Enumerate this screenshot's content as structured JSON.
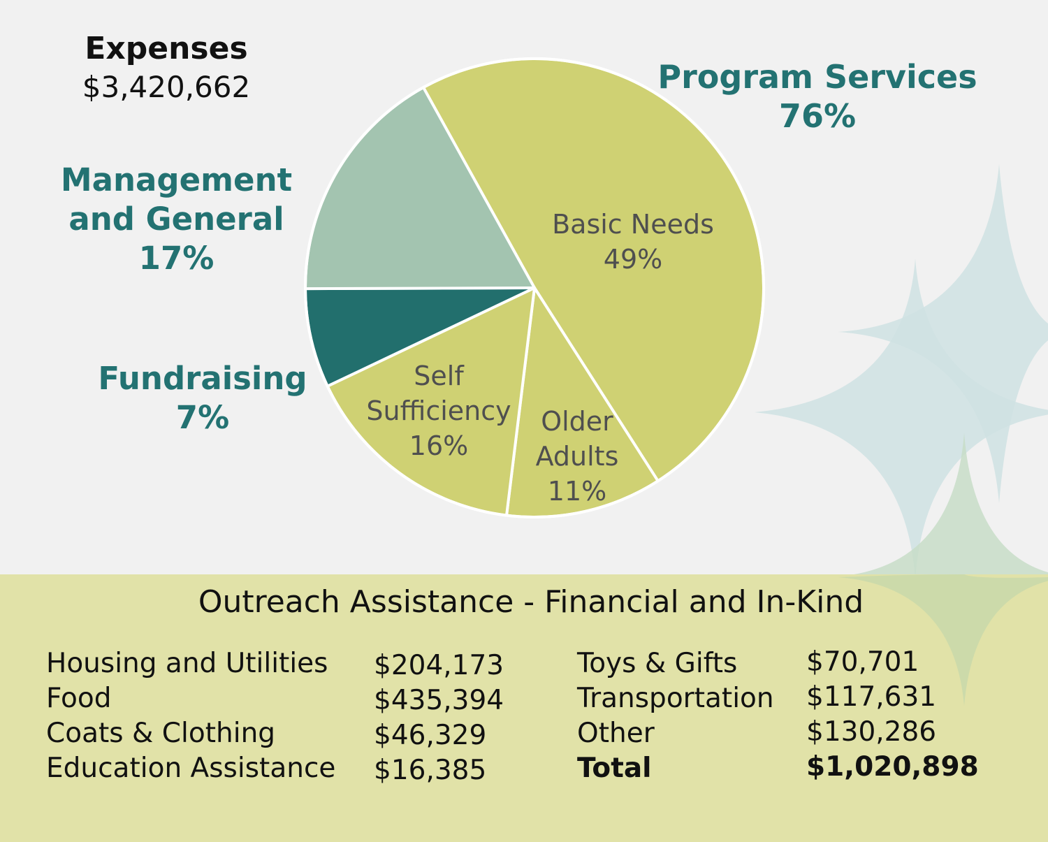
{
  "header": {
    "title": "Expenses",
    "total": "$3,420,662"
  },
  "categories": {
    "program_services": {
      "name": "Program Services",
      "percent": "76%"
    },
    "management": {
      "line1": "Management",
      "line2": "and General",
      "percent": "17%"
    },
    "fundraising": {
      "name": "Fundraising",
      "percent": "7%"
    }
  },
  "slice_labels": {
    "basic_needs": {
      "line1": "Basic Needs",
      "line2": "49%"
    },
    "self_sufficiency": {
      "line1": "Self",
      "line2": "Sufficiency",
      "line3": "16%"
    },
    "older_adults": {
      "line1": "Older",
      "line2": "Adults",
      "line3": "11%"
    }
  },
  "colors": {
    "program": "#cfd173",
    "management": "#a3c4b0",
    "fundraising": "#226f6d",
    "teal_text": "#237272",
    "panel": "#e1e2a8",
    "stars": "#c9dfe0"
  },
  "chart_data": {
    "type": "pie",
    "title": "Expenses",
    "total": "$3,420,662",
    "slices": [
      {
        "label": "Basic Needs",
        "value": 49,
        "group": "Program Services",
        "color": "#cfd173"
      },
      {
        "label": "Older Adults",
        "value": 11,
        "group": "Program Services",
        "color": "#cfd173"
      },
      {
        "label": "Self Sufficiency",
        "value": 16,
        "group": "Program Services",
        "color": "#cfd173"
      },
      {
        "label": "Fundraising",
        "value": 7,
        "group": "Fundraising",
        "color": "#226f6d"
      },
      {
        "label": "Management and General",
        "value": 17,
        "group": "Management and General",
        "color": "#a3c4b0"
      }
    ],
    "groups": [
      {
        "name": "Program Services",
        "value": 76
      },
      {
        "name": "Management and General",
        "value": 17
      },
      {
        "name": "Fundraising",
        "value": 7
      }
    ],
    "start_angle_deg": -29,
    "direction": "clockwise"
  },
  "outreach": {
    "title": "Outreach Assistance - Financial and In-Kind",
    "left_rows": [
      {
        "label": "Housing and Utilities",
        "value": "$204,173"
      },
      {
        "label": "Food",
        "value": "$435,394"
      },
      {
        "label": "Coats & Clothing",
        "value": "$46,329"
      },
      {
        "label": "Education Assistance",
        "value": "$16,385"
      }
    ],
    "right_rows": [
      {
        "label": "Toys & Gifts",
        "value": "$70,701"
      },
      {
        "label": "Transportation",
        "value": "$117,631"
      },
      {
        "label": "Other",
        "value": "$130,286"
      },
      {
        "label": "Total",
        "value": "$1,020,898"
      }
    ]
  }
}
